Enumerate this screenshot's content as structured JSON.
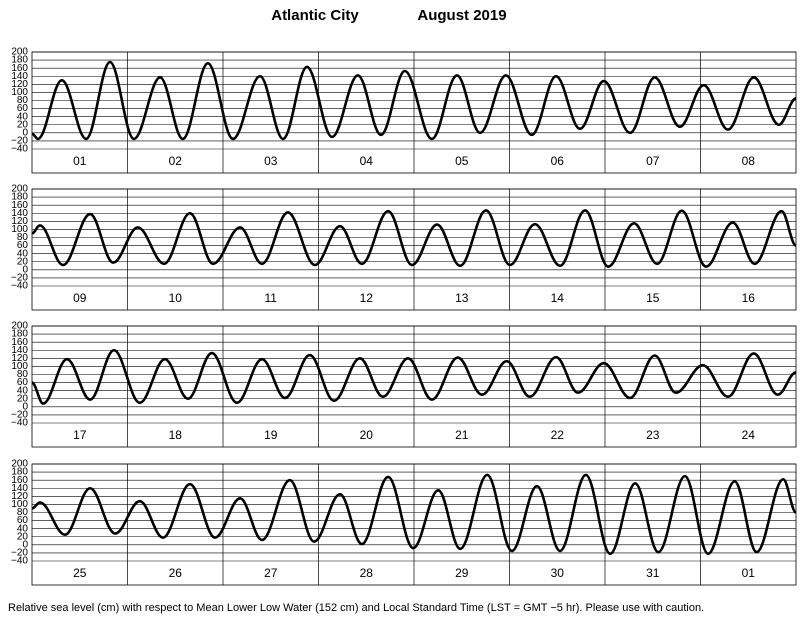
{
  "title": "Atlantic City",
  "subtitle": "August 2019",
  "caption": "Relative sea level (cm) with respect to Mean Lower Low Water (152 cm) and Local Standard Time (LST = GMT −5 hr). Please use with caution.",
  "chart_data": [
    {
      "type": "line",
      "categories": [
        "01",
        "02",
        "03",
        "04",
        "05",
        "06",
        "07",
        "08"
      ],
      "x": [
        0,
        1.5,
        7.5,
        13.6,
        19.6,
        25.6,
        32.2,
        37.9,
        44.2,
        50.5,
        57.3,
        63.1,
        69.1,
        75.4,
        81.9,
        87.7,
        93.7,
        100.5,
        106.8,
        112.6,
        119.1,
        125.6,
        131.7,
        137.7,
        143.7,
        150.3,
        156.5,
        162.8,
        168.8,
        174.9,
        181.4,
        187.7,
        192
      ],
      "values": [
        -2,
        -15,
        130,
        -15,
        175,
        -15,
        137,
        -15,
        172,
        -15,
        140,
        -15,
        163,
        -10,
        142,
        -5,
        153,
        -15,
        142,
        0,
        142,
        -5,
        140,
        10,
        128,
        0,
        137,
        15,
        118,
        8,
        137,
        20,
        85
      ],
      "xlim": [
        0,
        192
      ],
      "ylim": [
        -40,
        200
      ],
      "yticks": [
        {
          "value": -40,
          "label": "−40"
        },
        {
          "value": -20,
          "label": "−20"
        },
        0,
        20,
        40,
        60,
        80,
        100,
        120,
        140,
        160,
        180,
        200
      ],
      "color": "#000000",
      "grid": true
    },
    {
      "type": "line",
      "categories": [
        "09",
        "10",
        "11",
        "12",
        "13",
        "14",
        "15",
        "16"
      ],
      "x": [
        0,
        2.0,
        7.8,
        14.6,
        20.4,
        26.6,
        33.2,
        39.7,
        45.5,
        52.3,
        57.8,
        64.3,
        71.1,
        77.4,
        82.9,
        89.5,
        95.5,
        101.8,
        107.6,
        114.1,
        120.1,
        126.4,
        132.7,
        139.0,
        144.8,
        151.3,
        157.1,
        163.3,
        169.4,
        176.1,
        181.6,
        188.4,
        192
      ],
      "values": [
        90,
        110,
        12,
        138,
        18,
        105,
        15,
        140,
        15,
        105,
        15,
        142,
        12,
        108,
        15,
        145,
        12,
        112,
        10,
        147,
        12,
        113,
        10,
        147,
        8,
        115,
        15,
        146,
        8,
        117,
        15,
        145,
        60
      ],
      "xlim": [
        0,
        192
      ],
      "ylim": [
        -40,
        200
      ],
      "yticks": [
        {
          "value": -40,
          "label": "−40"
        },
        {
          "value": -20,
          "label": "−20"
        },
        0,
        20,
        40,
        60,
        80,
        100,
        120,
        140,
        160,
        180,
        200
      ],
      "color": "#000000",
      "grid": true
    },
    {
      "type": "line",
      "categories": [
        "17",
        "18",
        "19",
        "20",
        "21",
        "22",
        "23",
        "24"
      ],
      "x": [
        0,
        2.8,
        8.8,
        14.6,
        20.6,
        27.1,
        33.4,
        39.2,
        45.2,
        51.5,
        57.8,
        63.6,
        69.8,
        75.9,
        82.4,
        88.2,
        94.5,
        100.5,
        107.0,
        113.1,
        119.3,
        125.1,
        131.7,
        137.2,
        143.7,
        150.3,
        156.5,
        161.8,
        168.6,
        174.9,
        181.4,
        187.4,
        192
      ],
      "values": [
        60,
        8,
        118,
        18,
        140,
        10,
        118,
        20,
        133,
        10,
        118,
        22,
        128,
        15,
        120,
        25,
        120,
        18,
        122,
        30,
        113,
        25,
        123,
        35,
        108,
        22,
        127,
        35,
        103,
        25,
        132,
        30,
        85
      ],
      "xlim": [
        0,
        192
      ],
      "ylim": [
        -40,
        200
      ],
      "yticks": [
        {
          "value": -40,
          "label": "−40"
        },
        {
          "value": -20,
          "label": "−20"
        },
        0,
        20,
        40,
        60,
        80,
        100,
        120,
        140,
        160,
        180,
        200
      ],
      "color": "#000000",
      "grid": true
    },
    {
      "type": "line",
      "categories": [
        "25",
        "26",
        "27",
        "28",
        "29",
        "30",
        "31",
        "01"
      ],
      "x": [
        0,
        2.0,
        8.3,
        14.6,
        20.9,
        27.1,
        32.9,
        39.7,
        46.0,
        52.3,
        57.8,
        64.8,
        70.9,
        77.4,
        82.9,
        89.5,
        95.8,
        102.1,
        107.6,
        114.4,
        120.6,
        126.9,
        132.7,
        139.2,
        145.3,
        151.6,
        157.4,
        164.1,
        169.9,
        176.6,
        182.1,
        188.8,
        192
      ],
      "values": [
        90,
        105,
        25,
        140,
        28,
        108,
        18,
        150,
        18,
        115,
        12,
        160,
        8,
        125,
        2,
        168,
        -8,
        135,
        -10,
        173,
        -15,
        145,
        -15,
        173,
        -22,
        152,
        -18,
        170,
        -22,
        157,
        -18,
        162,
        80
      ],
      "xlim": [
        0,
        192
      ],
      "ylim": [
        -40,
        200
      ],
      "yticks": [
        {
          "value": -40,
          "label": "−40"
        },
        {
          "value": -20,
          "label": "−20"
        },
        0,
        20,
        40,
        60,
        80,
        100,
        120,
        140,
        160,
        180,
        200
      ],
      "color": "#000000",
      "grid": true
    }
  ]
}
